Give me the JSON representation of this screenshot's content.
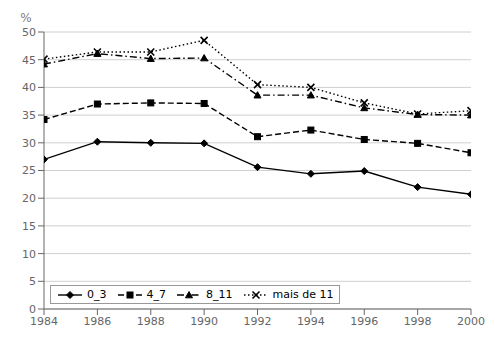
{
  "chart_data": {
    "type": "line",
    "ylabel": "%",
    "x": [
      1984,
      1986,
      1988,
      1990,
      1992,
      1994,
      1996,
      1998,
      2000
    ],
    "xlim": [
      1984,
      2000
    ],
    "xticks": [
      1984,
      1986,
      1988,
      1990,
      1992,
      1994,
      1996,
      1998,
      2000
    ],
    "ylim": [
      0,
      50
    ],
    "yticks": [
      0,
      5,
      10,
      15,
      20,
      25,
      30,
      35,
      40,
      45,
      50
    ],
    "grid": true,
    "legend": "lower left",
    "series": [
      {
        "name": "0_3",
        "color": "#000000",
        "line_style": "solid",
        "marker": "diamond",
        "values": [
          27,
          30.2,
          30,
          29.9,
          25.6,
          24.4,
          24.9,
          22,
          20.7
        ]
      },
      {
        "name": "4_7",
        "color": "#000000",
        "line_style": "dashed",
        "marker": "square",
        "values": [
          34.2,
          37,
          37.2,
          37.1,
          31.1,
          32.3,
          30.6,
          29.9,
          28.2
        ]
      },
      {
        "name": "8_11",
        "color": "#000000",
        "line_style": "dashdot",
        "marker": "triangle",
        "values": [
          44.2,
          46.1,
          45.2,
          45.3,
          38.6,
          38.6,
          36.3,
          35.1,
          35.0
        ]
      },
      {
        "name": "mais de 11",
        "color": "#000000",
        "line_style": "dotted",
        "marker": "x",
        "values": [
          45.1,
          46.4,
          46.4,
          48.5,
          40.5,
          40.0,
          37.2,
          35.2,
          35.8
        ]
      }
    ]
  }
}
